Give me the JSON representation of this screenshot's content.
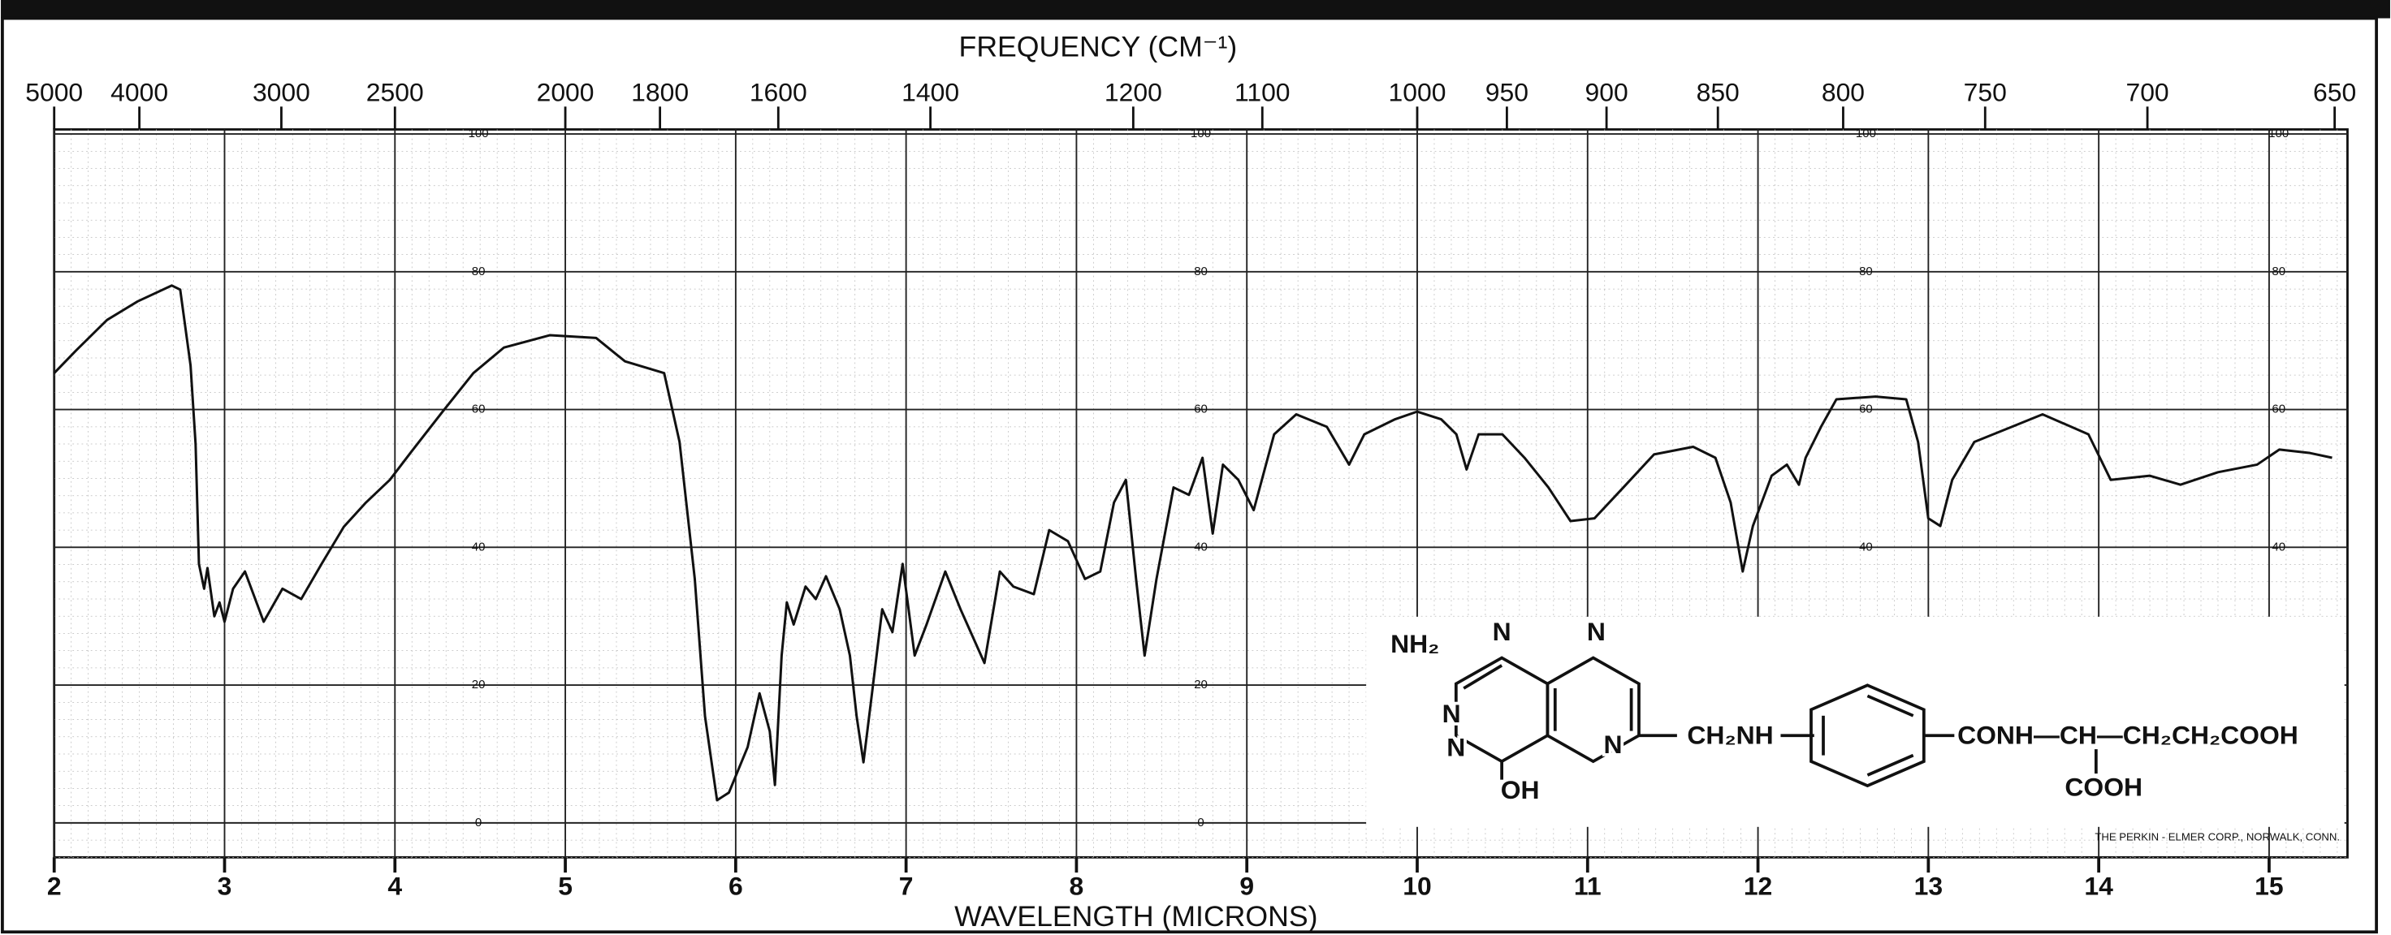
{
  "chart_data": {
    "type": "line",
    "title": "FREQUENCY (CM⁻¹)",
    "x_label": "WAVELENGTH (MICRONS)",
    "credit": "THE PERKIN - ELMER CORP., NORWALK, CONN.",
    "structure_labels": [
      "NH₂",
      "N",
      "N",
      "N",
      "N",
      "N",
      "OH",
      "CH₂NH",
      "CONH—CH—CH₂CH₂COOH",
      "COOH"
    ],
    "x": [
      2.0,
      2.13,
      2.31,
      2.49,
      2.69,
      2.74,
      2.8,
      2.83,
      2.85,
      2.88,
      2.9,
      2.94,
      2.97,
      3.0,
      3.05,
      3.12,
      3.23,
      3.34,
      3.45,
      3.57,
      3.7,
      3.83,
      3.97,
      4.1,
      4.28,
      4.46,
      4.64,
      4.91,
      5.18,
      5.35,
      5.58,
      5.67,
      5.76,
      5.82,
      5.89,
      5.96,
      6.07,
      6.14,
      6.2,
      6.23,
      6.27,
      6.3,
      6.34,
      6.41,
      6.47,
      6.53,
      6.61,
      6.67,
      6.71,
      6.75,
      6.8,
      6.86,
      6.92,
      6.98,
      7.05,
      7.12,
      7.23,
      7.32,
      7.46,
      7.55,
      7.63,
      7.75,
      7.84,
      7.95,
      8.05,
      8.14,
      8.22,
      8.29,
      8.35,
      8.4,
      8.47,
      8.57,
      8.66,
      8.74,
      8.8,
      8.86,
      8.95,
      9.04,
      9.16,
      9.29,
      9.47,
      9.6,
      9.69,
      9.87,
      10.0,
      10.14,
      10.23,
      10.29,
      10.36,
      10.5,
      10.63,
      10.77,
      10.9,
      11.04,
      11.21,
      11.39,
      11.62,
      11.75,
      11.84,
      11.91,
      11.97,
      12.08,
      12.17,
      12.24,
      12.28,
      12.37,
      12.46,
      12.69,
      12.87,
      12.94,
      13.0,
      13.07,
      13.14,
      13.27,
      13.49,
      13.67,
      13.94,
      14.07,
      14.3,
      14.48,
      14.7,
      14.93,
      15.06,
      15.24,
      15.37
    ],
    "series": [
      {
        "color": "#111111",
        "values": [
          65.3,
          68.6,
          73,
          75.7,
          78,
          77.4,
          66.4,
          55,
          37.6,
          34,
          37,
          30,
          32,
          29.2,
          34,
          36.5,
          29.2,
          34,
          32.5,
          37.6,
          43,
          46.5,
          49.8,
          54,
          59.7,
          65.3,
          69,
          70.8,
          70.4,
          67,
          65.3,
          55.3,
          35.4,
          15.5,
          3.3,
          4.4,
          11,
          18.8,
          13.3,
          5.5,
          24.3,
          32,
          28.8,
          34.3,
          32.5,
          35.8,
          31,
          24.3,
          15.5,
          8.8,
          18.8,
          31,
          27.7,
          37.6,
          24.3,
          28.8,
          36.5,
          31,
          23.2,
          36.5,
          34.3,
          33.2,
          42.5,
          40.9,
          35.4,
          36.5,
          46.5,
          49.8,
          35.4,
          24.3,
          35.4,
          48.7,
          47.6,
          53,
          42,
          52,
          49.8,
          45.4,
          56.4,
          59.3,
          57.5,
          52,
          56.4,
          58.6,
          59.7,
          58.6,
          56.4,
          51.3,
          56.4,
          56.4,
          53,
          48.7,
          43.8,
          44.2,
          48.7,
          53.5,
          54.6,
          53,
          46.5,
          36.5,
          43.1,
          50.4,
          52,
          49.1,
          53,
          57.5,
          61.5,
          61.9,
          61.5,
          55.3,
          44.2,
          43.1,
          49.8,
          55.3,
          57.5,
          59.3,
          56.4,
          49.8,
          50.4,
          49.1,
          50.9,
          52,
          54.2,
          53.7,
          53
        ]
      }
    ],
    "xlim": [
      2,
      15.46
    ],
    "ylim": [
      -5,
      100
    ],
    "xticks": [
      2,
      3,
      4,
      5,
      6,
      7,
      8,
      9,
      10,
      11,
      12,
      13,
      14,
      15
    ],
    "yticks": [
      0,
      20,
      40,
      60,
      80,
      100
    ],
    "x2ticks": [
      5000,
      4000,
      3000,
      2500,
      2000,
      1800,
      1600,
      1400,
      1200,
      1100,
      1000,
      950,
      900,
      850,
      800,
      750,
      700,
      650
    ],
    "grid": true
  }
}
